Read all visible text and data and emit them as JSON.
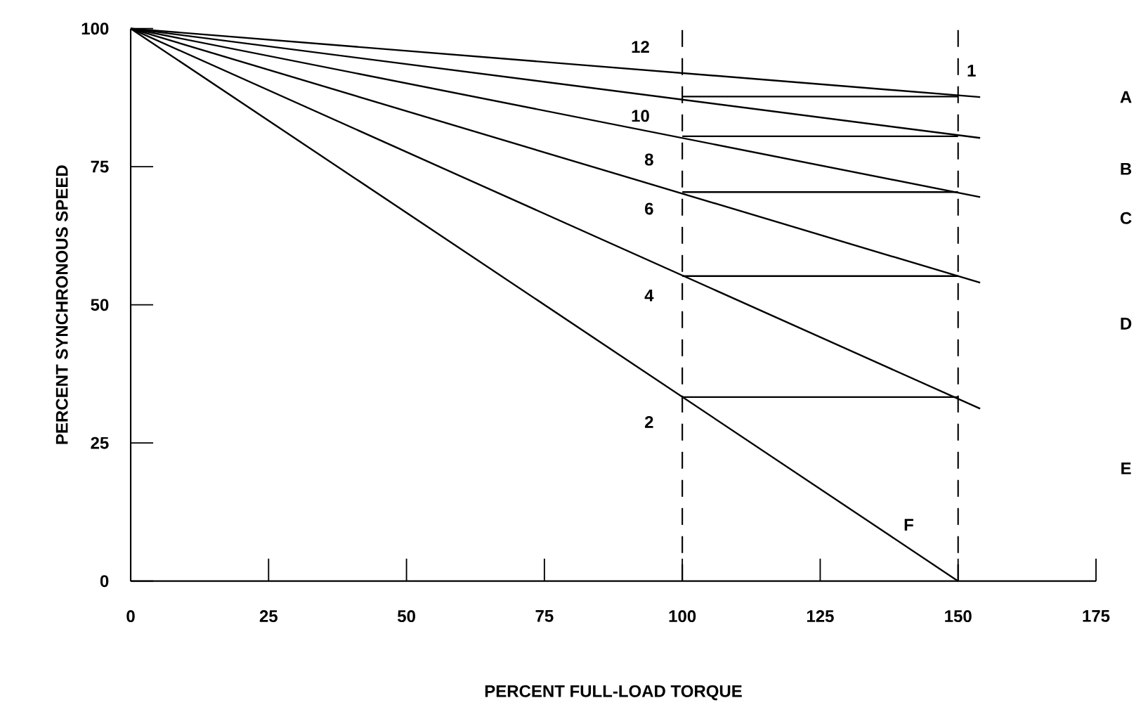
{
  "chart_data": {
    "type": "line",
    "xlabel": "PERCENT FULL-LOAD TORQUE",
    "ylabel": "PERCENT SYNCHRONOUS SPEED",
    "xlim": [
      0,
      175
    ],
    "ylim": [
      0,
      100
    ],
    "xticks": [
      0,
      25,
      50,
      75,
      100,
      125,
      150,
      175
    ],
    "yticks": [
      0,
      25,
      50,
      75,
      100
    ],
    "grid": false,
    "series": [
      {
        "color": "#000000",
        "x": [
          0,
          154
        ],
        "values": [
          100,
          87.6
        ]
      },
      {
        "color": "#000000",
        "x": [
          0,
          154
        ],
        "values": [
          100,
          80.2
        ]
      },
      {
        "color": "#000000",
        "x": [
          0,
          154
        ],
        "values": [
          100,
          69.5
        ]
      },
      {
        "color": "#000000",
        "x": [
          0,
          154
        ],
        "values": [
          100,
          54
        ]
      },
      {
        "color": "#000000",
        "x": [
          0,
          154
        ],
        "values": [
          100,
          31.2
        ]
      },
      {
        "color": "#000000",
        "x": [
          0,
          150
        ],
        "values": [
          100,
          0
        ]
      },
      {
        "color": "#000000",
        "x": [
          100,
          150
        ],
        "values": [
          87.7,
          87.7
        ]
      },
      {
        "color": "#000000",
        "x": [
          100,
          150
        ],
        "values": [
          80.5,
          80.5
        ]
      },
      {
        "color": "#000000",
        "x": [
          100,
          150
        ],
        "values": [
          70.4,
          70.4
        ]
      },
      {
        "color": "#000000",
        "x": [
          100,
          150
        ],
        "values": [
          55.2,
          55.2
        ]
      },
      {
        "color": "#000000",
        "x": [
          100,
          150
        ],
        "values": [
          33.3,
          33.3
        ]
      }
    ],
    "ref_lines": [
      {
        "axis": "x",
        "value": 100,
        "line_style": "dashed",
        "color": "#000000"
      },
      {
        "axis": "x",
        "value": 150,
        "line_style": "dashed",
        "color": "#000000"
      }
    ],
    "annotations": [
      "12",
      "10",
      "8",
      "6",
      "4",
      "2",
      "1",
      "F",
      "A",
      "B",
      "C",
      "D",
      "E"
    ]
  }
}
